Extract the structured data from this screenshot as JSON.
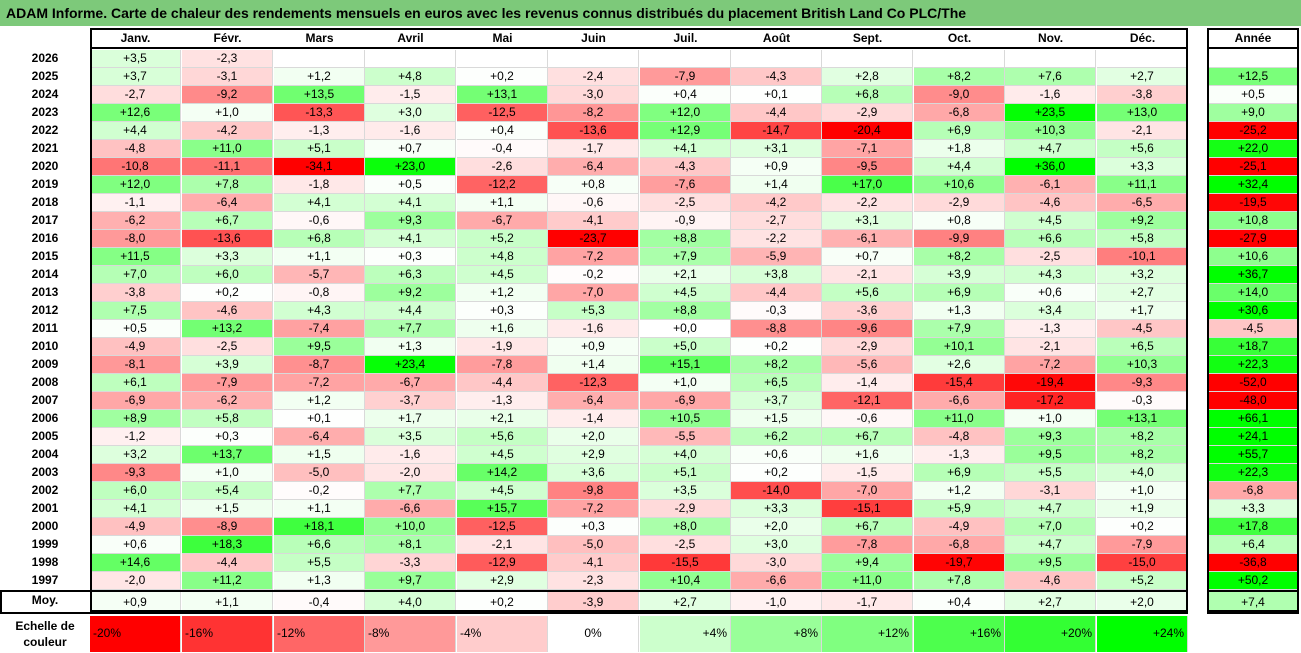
{
  "title": "ADAM Informe. Carte de chaleur des rendements mensuels en euros avec les revenus connus distribués du placement British Land Co PLC/The",
  "chart_data": {
    "type": "heatmap",
    "months": [
      "Janv.",
      "Févr.",
      "Mars",
      "Avril",
      "Mai",
      "Juin",
      "Juil.",
      "Août",
      "Sept.",
      "Oct.",
      "Nov.",
      "Déc."
    ],
    "year_header": "Année",
    "average_label": "Moy.",
    "rows": [
      {
        "year": "2026",
        "months": [
          3.5,
          -2.3,
          null,
          null,
          null,
          null,
          null,
          null,
          null,
          null,
          null,
          null
        ],
        "annual": null
      },
      {
        "year": "2025",
        "months": [
          3.7,
          -3.1,
          1.2,
          4.8,
          0.2,
          -2.4,
          -7.9,
          -4.3,
          2.8,
          8.2,
          7.6,
          2.7
        ],
        "annual": 12.5
      },
      {
        "year": "2024",
        "months": [
          -2.7,
          -9.2,
          13.5,
          -1.5,
          13.1,
          -3.0,
          0.4,
          0.1,
          6.8,
          -9.0,
          -1.6,
          -3.8
        ],
        "annual": 0.5
      },
      {
        "year": "2023",
        "months": [
          12.6,
          1.0,
          -13.3,
          3.0,
          -12.5,
          -8.2,
          12.0,
          -4.4,
          -2.9,
          -6.8,
          23.5,
          13.0
        ],
        "annual": 9.0
      },
      {
        "year": "2022",
        "months": [
          4.4,
          -4.2,
          -1.3,
          -1.6,
          0.4,
          -13.6,
          12.9,
          -14.7,
          -20.4,
          6.9,
          10.3,
          -2.1
        ],
        "annual": -25.2
      },
      {
        "year": "2021",
        "months": [
          -4.8,
          11.0,
          5.1,
          0.7,
          -0.4,
          -1.7,
          4.1,
          3.1,
          -7.1,
          1.8,
          4.7,
          5.6
        ],
        "annual": 22.0
      },
      {
        "year": "2020",
        "months": [
          -10.8,
          -11.1,
          -34.1,
          23.0,
          -2.6,
          -6.4,
          -4.3,
          0.9,
          -9.5,
          4.4,
          36.0,
          3.3
        ],
        "annual": -25.1
      },
      {
        "year": "2019",
        "months": [
          12.0,
          7.8,
          -1.8,
          0.5,
          -12.2,
          0.8,
          -7.6,
          1.4,
          17.0,
          10.6,
          -6.1,
          11.1
        ],
        "annual": 32.4
      },
      {
        "year": "2018",
        "months": [
          -1.1,
          -6.4,
          4.1,
          4.1,
          1.1,
          -0.6,
          -2.5,
          -4.2,
          -2.2,
          -2.9,
          -4.6,
          -6.5
        ],
        "annual": -19.5
      },
      {
        "year": "2017",
        "months": [
          -6.2,
          6.7,
          -0.6,
          9.3,
          -6.7,
          -4.1,
          -0.9,
          -2.7,
          3.1,
          0.8,
          4.5,
          9.2
        ],
        "annual": 10.8
      },
      {
        "year": "2016",
        "months": [
          -8.0,
          -13.6,
          6.8,
          4.1,
          5.2,
          -23.7,
          8.8,
          -2.2,
          -6.1,
          -9.9,
          6.6,
          5.8
        ],
        "annual": -27.9
      },
      {
        "year": "2015",
        "months": [
          11.5,
          3.3,
          1.1,
          0.3,
          4.8,
          -7.2,
          7.9,
          -5.9,
          0.7,
          8.2,
          -2.5,
          -10.1
        ],
        "annual": 10.6
      },
      {
        "year": "2014",
        "months": [
          7.0,
          6.0,
          -5.7,
          6.3,
          4.5,
          -0.2,
          2.1,
          3.8,
          -2.1,
          3.9,
          4.3,
          3.2
        ],
        "annual": 36.7
      },
      {
        "year": "2013",
        "months": [
          -3.8,
          0.2,
          -0.8,
          9.2,
          1.2,
          -7.0,
          4.5,
          -4.4,
          5.6,
          6.9,
          0.6,
          2.7
        ],
        "annual": 14.0
      },
      {
        "year": "2012",
        "months": [
          7.5,
          -4.6,
          4.3,
          4.4,
          0.3,
          5.3,
          8.8,
          -0.3,
          -3.6,
          1.3,
          3.4,
          1.7
        ],
        "annual": 30.6
      },
      {
        "year": "2011",
        "months": [
          0.5,
          13.2,
          -7.4,
          7.7,
          1.6,
          -1.6,
          0.0,
          -8.8,
          -9.6,
          7.9,
          -1.3,
          -4.5
        ],
        "annual": -4.5
      },
      {
        "year": "2010",
        "months": [
          -4.9,
          -2.5,
          9.5,
          1.3,
          -1.9,
          0.9,
          5.0,
          0.2,
          -2.9,
          10.1,
          -2.1,
          6.5
        ],
        "annual": 18.7
      },
      {
        "year": "2009",
        "months": [
          -8.1,
          3.9,
          -8.7,
          23.4,
          -7.8,
          1.4,
          15.1,
          8.2,
          -5.6,
          2.6,
          -7.2,
          10.3
        ],
        "annual": 22.3
      },
      {
        "year": "2008",
        "months": [
          6.1,
          -7.9,
          -7.2,
          -6.7,
          -4.4,
          -12.3,
          1.0,
          6.5,
          -1.4,
          -15.4,
          -19.4,
          -9.3
        ],
        "annual": -52.0
      },
      {
        "year": "2007",
        "months": [
          -6.9,
          -6.2,
          1.2,
          -3.7,
          -1.3,
          -6.4,
          -6.9,
          3.7,
          -12.1,
          -6.6,
          -17.2,
          -0.3
        ],
        "annual": -48.0
      },
      {
        "year": "2006",
        "months": [
          8.9,
          5.8,
          0.1,
          1.7,
          2.1,
          -1.4,
          10.5,
          1.5,
          -0.6,
          11.0,
          1.0,
          13.1
        ],
        "annual": 66.1
      },
      {
        "year": "2005",
        "months": [
          -1.2,
          0.3,
          -6.4,
          3.5,
          5.6,
          2.0,
          -5.5,
          6.2,
          6.7,
          -4.8,
          9.3,
          8.2
        ],
        "annual": 24.1
      },
      {
        "year": "2004",
        "months": [
          3.2,
          13.7,
          1.5,
          -1.6,
          4.5,
          2.9,
          4.0,
          0.6,
          1.6,
          -1.3,
          9.5,
          8.2
        ],
        "annual": 55.7
      },
      {
        "year": "2003",
        "months": [
          -9.3,
          1.0,
          -5.0,
          -2.0,
          14.2,
          3.6,
          5.1,
          0.2,
          -1.5,
          6.9,
          5.5,
          4.0
        ],
        "annual": 22.3
      },
      {
        "year": "2002",
        "months": [
          6.0,
          5.4,
          -0.2,
          7.7,
          4.5,
          -9.8,
          3.5,
          -14.0,
          -7.0,
          1.2,
          -3.1,
          1.0
        ],
        "annual": -6.8
      },
      {
        "year": "2001",
        "months": [
          4.1,
          1.5,
          1.1,
          -6.6,
          15.7,
          -7.2,
          -2.9,
          3.3,
          -15.1,
          5.9,
          4.7,
          1.9
        ],
        "annual": 3.3
      },
      {
        "year": "2000",
        "months": [
          -4.9,
          -8.9,
          18.1,
          10.0,
          -12.5,
          0.3,
          8.0,
          2.0,
          6.7,
          -4.9,
          7.0,
          0.2
        ],
        "annual": 17.8
      },
      {
        "year": "1999",
        "months": [
          0.6,
          18.3,
          6.6,
          8.1,
          -2.1,
          -5.0,
          -2.5,
          3.0,
          -7.8,
          -6.8,
          4.7,
          -7.9
        ],
        "annual": 6.4
      },
      {
        "year": "1998",
        "months": [
          14.6,
          -4.4,
          5.5,
          -3.3,
          -12.9,
          -4.1,
          -15.5,
          -3.0,
          9.4,
          -19.7,
          9.5,
          -15.0
        ],
        "annual": -36.8
      },
      {
        "year": "1997",
        "months": [
          -2.0,
          11.2,
          1.3,
          9.7,
          2.9,
          -2.3,
          10.4,
          -6.6,
          11.0,
          7.8,
          -4.6,
          5.2
        ],
        "annual": 50.2
      }
    ],
    "averages": {
      "months": [
        0.9,
        1.1,
        -0.4,
        4.0,
        0.2,
        -3.9,
        2.7,
        -1.0,
        -1.7,
        0.4,
        2.7,
        2.0
      ],
      "annual": 7.4
    },
    "scale_label": "Echelle de couleur",
    "scale": [
      {
        "label": "-20%",
        "value": -20,
        "color": "#ff0000"
      },
      {
        "label": "-16%",
        "value": -16,
        "color": "#ff3333"
      },
      {
        "label": "-12%",
        "value": -12,
        "color": "#ff6666"
      },
      {
        "label": "-8%",
        "value": -8,
        "color": "#ff9999"
      },
      {
        "label": "-4%",
        "value": -4,
        "color": "#ffcccc"
      },
      {
        "label": "0%",
        "value": 0,
        "color": "#ffffff"
      },
      {
        "label": "+4%",
        "value": 4,
        "color": "#ccffcc"
      },
      {
        "label": "+8%",
        "value": 8,
        "color": "#99ff99"
      },
      {
        "label": "+12%",
        "value": 12,
        "color": "#80ff80"
      },
      {
        "label": "+16%",
        "value": 16,
        "color": "#4dff4d"
      },
      {
        "label": "+20%",
        "value": 20,
        "color": "#33ff33"
      },
      {
        "label": "+24%",
        "value": 24,
        "color": "#00ff00"
      }
    ]
  }
}
